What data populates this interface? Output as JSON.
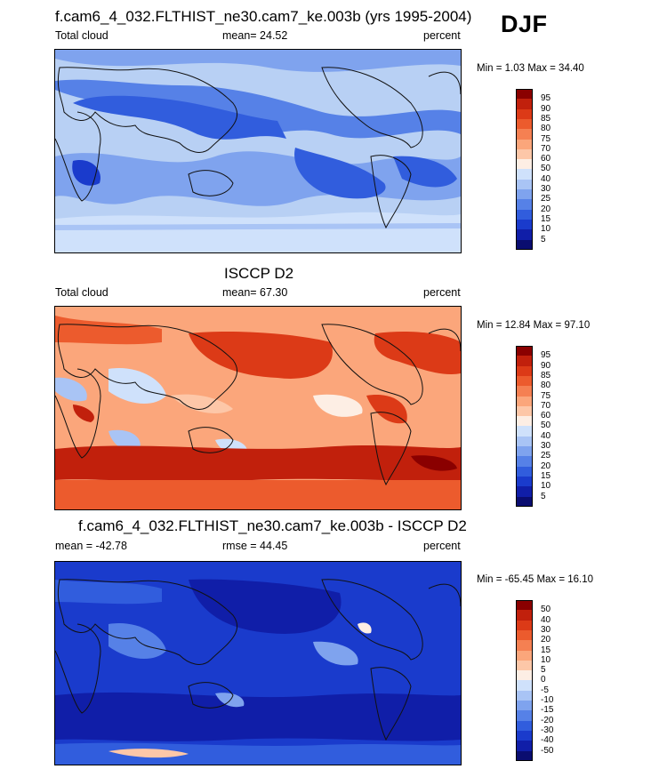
{
  "season": "DJF",
  "colors": {
    "panel1_base": "#b8d0f4",
    "panel2_base": "#f6a98c",
    "panel3_base": "#1b3fd2",
    "coast": "#111111"
  },
  "chart_data": [
    {
      "type": "heatmap",
      "title": "f.cam6_4_032.FLTHIST_ne30.cam7_ke.003b (yrs 1995-2004)",
      "left_label": "Total cloud",
      "center_label": "mean=  24.52",
      "right_label": "percent",
      "mean": 24.52,
      "min": 1.03,
      "max": 34.4,
      "minmax_label": "Min =   1.03 Max =  34.40",
      "units": "percent",
      "colorbar": {
        "levels": [
          "95",
          "90",
          "85",
          "80",
          "75",
          "70",
          "60",
          "50",
          "40",
          "30",
          "25",
          "20",
          "15",
          "10",
          "5"
        ],
        "colors": [
          "#8a0000",
          "#c1200c",
          "#dc3a17",
          "#ec5b2d",
          "#f58052",
          "#fba67b",
          "#fdc7a8",
          "#fdeee4",
          "#cfe1fb",
          "#a9c4f5",
          "#7fa3ee",
          "#5681e7",
          "#315ddd",
          "#1a3bcc",
          "#101ea8",
          "#0a0d70"
        ]
      }
    },
    {
      "type": "heatmap",
      "title": "ISCCP D2",
      "left_label": "Total cloud",
      "center_label": "mean=  67.30",
      "right_label": "percent",
      "mean": 67.3,
      "min": 12.84,
      "max": 97.1,
      "minmax_label": "Min =  12.84 Max =  97.10",
      "units": "percent",
      "colorbar": {
        "levels": [
          "95",
          "90",
          "85",
          "80",
          "75",
          "70",
          "60",
          "50",
          "40",
          "30",
          "25",
          "20",
          "15",
          "10",
          "5"
        ],
        "colors": [
          "#8a0000",
          "#c1200c",
          "#dc3a17",
          "#ec5b2d",
          "#f58052",
          "#fba67b",
          "#fdc7a8",
          "#fdeee4",
          "#cfe1fb",
          "#a9c4f5",
          "#7fa3ee",
          "#5681e7",
          "#315ddd",
          "#1a3bcc",
          "#101ea8",
          "#0a0d70"
        ]
      }
    },
    {
      "type": "heatmap",
      "title": "f.cam6_4_032.FLTHIST_ne30.cam7_ke.003b - ISCCP D2",
      "left_label": "mean = -42.78",
      "center_label": "rmse =  44.45",
      "right_label": "percent",
      "mean": -42.78,
      "rmse": 44.45,
      "min": -65.45,
      "max": 16.1,
      "minmax_label": "Min = -65.45 Max =  16.10",
      "units": "percent",
      "colorbar": {
        "levels": [
          "50",
          "40",
          "30",
          "20",
          "15",
          "10",
          "5",
          "0",
          "-5",
          "-10",
          "-15",
          "-20",
          "-30",
          "-40",
          "-50"
        ],
        "colors": [
          "#8a0000",
          "#c1200c",
          "#dc3a17",
          "#ec5b2d",
          "#f58052",
          "#fba67b",
          "#fdc7a8",
          "#fdeee4",
          "#cfe1fb",
          "#a9c4f5",
          "#7fa3ee",
          "#5681e7",
          "#315ddd",
          "#1a3bcc",
          "#101ea8",
          "#0a0d70"
        ]
      }
    }
  ]
}
